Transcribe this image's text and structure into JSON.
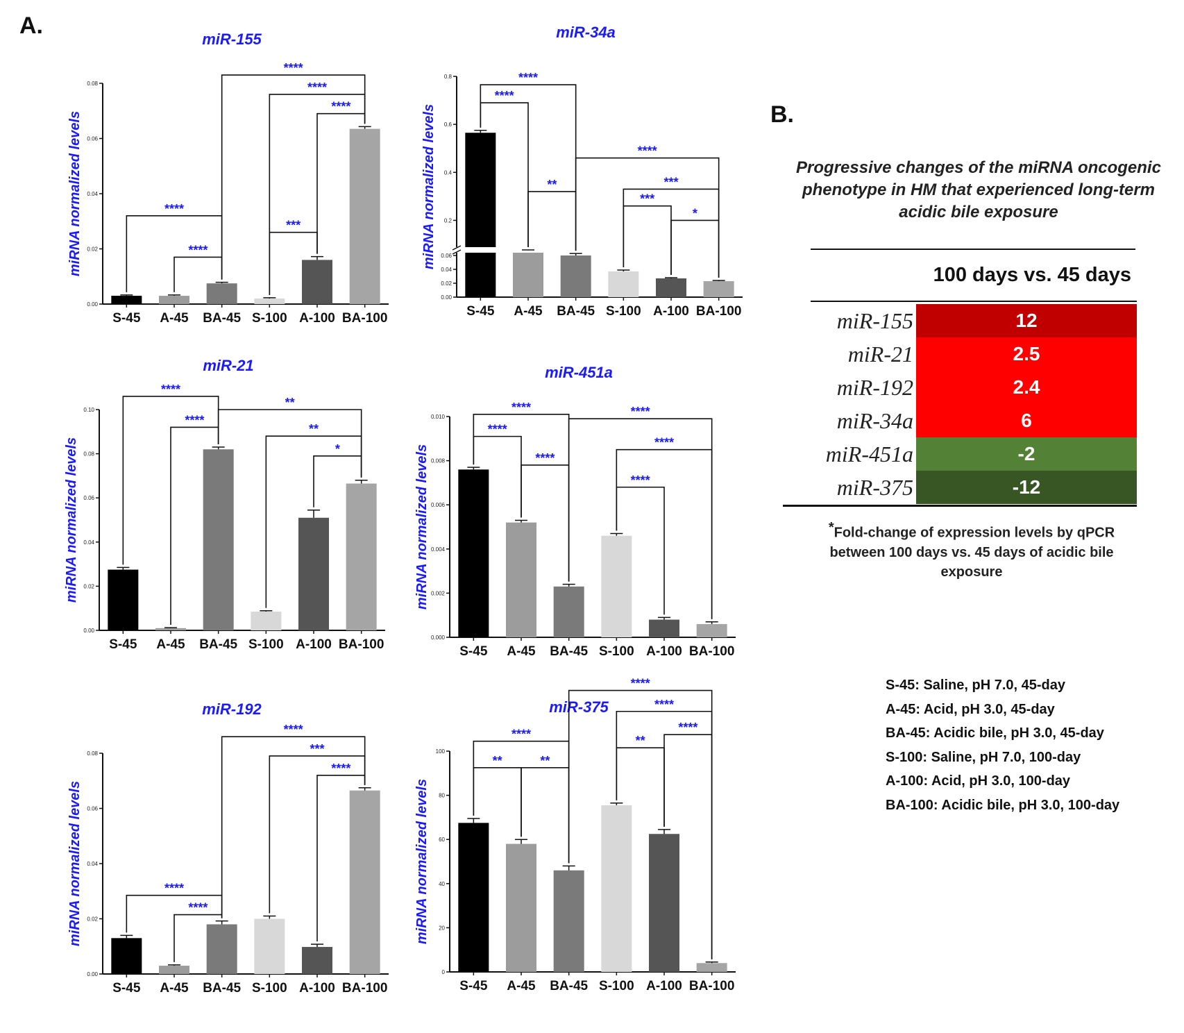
{
  "panels": {
    "a": "A.",
    "b": "B."
  },
  "chart_data": [
    {
      "type": "bar",
      "title": "miR-155",
      "ylabel": "miRNA normalized levels",
      "categories": [
        "S-45",
        "A-45",
        "BA-45",
        "S-100",
        "A-100",
        "BA-100"
      ],
      "values": [
        0.003,
        0.003,
        0.0075,
        0.002,
        0.016,
        0.0635
      ],
      "errors": [
        0.0003,
        0.0003,
        0.0004,
        0.0003,
        0.0012,
        0.0008
      ],
      "ylim": [
        0,
        0.08
      ],
      "yticks": [
        0.0,
        0.02,
        0.04,
        0.06,
        0.08
      ],
      "ytick_labels": [
        "0.00",
        "0.02",
        "0.04",
        "0.06",
        "0.08"
      ],
      "colors": [
        "#000000",
        "#9c9c9c",
        "#7a7a7a",
        "#d8d8d8",
        "#555555",
        "#a5a5a5"
      ],
      "significance": [
        {
          "from": 0,
          "to": 2,
          "label": "****",
          "y": 0.032
        },
        {
          "from": 1,
          "to": 2,
          "label": "****",
          "y": 0.017
        },
        {
          "from": 3,
          "to": 4,
          "label": "***",
          "y": 0.026
        },
        {
          "from": 2,
          "to": 5,
          "label": "****",
          "y": 0.083
        },
        {
          "from": 3,
          "to": 5,
          "label": "****",
          "y": 0.076
        },
        {
          "from": 4,
          "to": 5,
          "label": "****",
          "y": 0.069
        }
      ]
    },
    {
      "type": "bar",
      "title": "miR-34a",
      "ylabel": "miRNA normalized levels",
      "broken_axis": true,
      "categories": [
        "S-45",
        "A-45",
        "BA-45",
        "S-100",
        "A-100",
        "BA-100"
      ],
      "values": [
        0.565,
        0.075,
        0.06,
        0.037,
        0.027,
        0.023
      ],
      "errors": [
        0.01,
        0.002,
        0.002,
        0.002,
        0.001,
        0.001
      ],
      "ylim": [
        0,
        0.8
      ],
      "ytick_labels_low": [
        "0.00",
        "0.02",
        "0.04",
        "0.06"
      ],
      "ytick_labels_high": [
        "0.2",
        "0.4",
        "0.6",
        "0.8"
      ],
      "colors": [
        "#000000",
        "#9c9c9c",
        "#7a7a7a",
        "#d8d8d8",
        "#555555",
        "#a5a5a5"
      ],
      "significance": [
        {
          "from": 0,
          "to": 2,
          "label": "****",
          "y": 0.765
        },
        {
          "from": 0,
          "to": 1,
          "label": "****",
          "y": 0.69
        },
        {
          "from": 1,
          "to": 2,
          "label": "**",
          "y": 0.32
        },
        {
          "from": 2,
          "to": 5,
          "label": "****",
          "y": 0.46
        },
        {
          "from": 3,
          "to": 5,
          "label": "***",
          "y": 0.33
        },
        {
          "from": 3,
          "to": 4,
          "label": "***",
          "y": 0.26
        },
        {
          "from": 4,
          "to": 5,
          "label": "*",
          "y": 0.2
        }
      ]
    },
    {
      "type": "bar",
      "title": "miR-21",
      "ylabel": "miRNA normalized levels",
      "categories": [
        "S-45",
        "A-45",
        "BA-45",
        "S-100",
        "A-100",
        "BA-100"
      ],
      "values": [
        0.0275,
        0.001,
        0.082,
        0.0085,
        0.051,
        0.0665
      ],
      "errors": [
        0.001,
        0.0002,
        0.001,
        0.0004,
        0.0035,
        0.0015
      ],
      "ylim": [
        0,
        0.1
      ],
      "yticks": [
        0.0,
        0.02,
        0.04,
        0.06,
        0.08,
        0.1
      ],
      "ytick_labels": [
        "0.00",
        "0.02",
        "0.04",
        "0.06",
        "0.08",
        "0.10"
      ],
      "colors": [
        "#000000",
        "#9c9c9c",
        "#7a7a7a",
        "#d8d8d8",
        "#555555",
        "#a5a5a5"
      ],
      "significance": [
        {
          "from": 0,
          "to": 2,
          "label": "****",
          "y": 0.106
        },
        {
          "from": 1,
          "to": 2,
          "label": "****",
          "y": 0.092
        },
        {
          "from": 2,
          "to": 5,
          "label": "**",
          "y": 0.1
        },
        {
          "from": 3,
          "to": 5,
          "label": "**",
          "y": 0.088
        },
        {
          "from": 4,
          "to": 5,
          "label": "*",
          "y": 0.079
        }
      ]
    },
    {
      "type": "bar",
      "title": "miR-451a",
      "ylabel": "miRNA normalized levels",
      "categories": [
        "S-45",
        "A-45",
        "BA-45",
        "S-100",
        "A-100",
        "BA-100"
      ],
      "values": [
        0.0076,
        0.0052,
        0.0023,
        0.0046,
        0.0008,
        0.0006
      ],
      "errors": [
        0.0001,
        0.0001,
        0.0001,
        0.0001,
        0.0001,
        0.0001
      ],
      "ylim": [
        0,
        0.01
      ],
      "yticks": [
        0.0,
        0.002,
        0.004,
        0.006,
        0.008,
        0.01
      ],
      "ytick_labels": [
        "0.000",
        "0.002",
        "0.004",
        "0.006",
        "0.008",
        "0.010"
      ],
      "colors": [
        "#000000",
        "#9c9c9c",
        "#7a7a7a",
        "#d8d8d8",
        "#555555",
        "#a5a5a5"
      ],
      "significance": [
        {
          "from": 0,
          "to": 2,
          "label": "****",
          "y": 0.0101
        },
        {
          "from": 0,
          "to": 1,
          "label": "****",
          "y": 0.0091
        },
        {
          "from": 1,
          "to": 2,
          "label": "****",
          "y": 0.0078
        },
        {
          "from": 2,
          "to": 5,
          "label": "****",
          "y": 0.0099
        },
        {
          "from": 3,
          "to": 5,
          "label": "****",
          "y": 0.0085
        },
        {
          "from": 3,
          "to": 4,
          "label": "****",
          "y": 0.0068
        }
      ]
    },
    {
      "type": "bar",
      "title": "miR-192",
      "ylabel": "miRNA normalized levels",
      "categories": [
        "S-45",
        "A-45",
        "BA-45",
        "S-100",
        "A-100",
        "BA-100"
      ],
      "values": [
        0.013,
        0.003,
        0.018,
        0.02,
        0.0098,
        0.0665
      ],
      "errors": [
        0.001,
        0.0003,
        0.0012,
        0.001,
        0.001,
        0.001
      ],
      "ylim": [
        0,
        0.08
      ],
      "yticks": [
        0.0,
        0.02,
        0.04,
        0.06,
        0.08
      ],
      "ytick_labels": [
        "0.00",
        "0.02",
        "0.04",
        "0.06",
        "0.08"
      ],
      "colors": [
        "#000000",
        "#9c9c9c",
        "#7a7a7a",
        "#d8d8d8",
        "#555555",
        "#a5a5a5"
      ],
      "significance": [
        {
          "from": 0,
          "to": 2,
          "label": "****",
          "y": 0.0285
        },
        {
          "from": 1,
          "to": 2,
          "label": "****",
          "y": 0.0215
        },
        {
          "from": 2,
          "to": 5,
          "label": "****",
          "y": 0.086
        },
        {
          "from": 3,
          "to": 5,
          "label": "***",
          "y": 0.079
        },
        {
          "from": 4,
          "to": 5,
          "label": "****",
          "y": 0.072
        }
      ]
    },
    {
      "type": "bar",
      "title": "miR-375",
      "ylabel": "miRNA normalized levels",
      "categories": [
        "S-45",
        "A-45",
        "BA-45",
        "S-100",
        "A-100",
        "BA-100"
      ],
      "values": [
        67.5,
        58,
        46,
        75.5,
        62.5,
        4
      ],
      "errors": [
        2,
        2,
        2,
        1,
        2,
        0.5
      ],
      "ylim": [
        0,
        100
      ],
      "yticks": [
        0,
        20,
        40,
        60,
        80,
        100
      ],
      "ytick_labels": [
        "0",
        "20",
        "40",
        "60",
        "80",
        "100"
      ],
      "colors": [
        "#000000",
        "#9c9c9c",
        "#7a7a7a",
        "#d8d8d8",
        "#555555",
        "#a5a5a5"
      ],
      "significance": [
        {
          "from": 0,
          "to": 2,
          "label": "****",
          "y": 104.5
        },
        {
          "from": 0,
          "to": 1,
          "label": "**",
          "y": 92.5
        },
        {
          "from": 1,
          "to": 2,
          "label": "**",
          "y": 92.5
        },
        {
          "from": 2,
          "to": 5,
          "label": "****",
          "y": 127.5
        },
        {
          "from": 3,
          "to": 5,
          "label": "****",
          "y": 118
        },
        {
          "from": 3,
          "to": 4,
          "label": "**",
          "y": 101.5
        },
        {
          "from": 4,
          "to": 5,
          "label": "****",
          "y": 107.5
        }
      ]
    }
  ],
  "table": {
    "title": "Progressive changes of the miRNA oncogenic phenotype in HM that experienced long-term acidic bile exposure",
    "column_header": "100 days vs. 45 days",
    "rows": [
      {
        "name": "miR-155",
        "value": "12",
        "color": "#c00000"
      },
      {
        "name": "miR-21",
        "value": "2.5",
        "color": "#ff0000"
      },
      {
        "name": "miR-192",
        "value": "2.4",
        "color": "#ff0000"
      },
      {
        "name": "miR-34a",
        "value": "6",
        "color": "#ff0000"
      },
      {
        "name": "miR-451a",
        "value": "-2",
        "color": "#538135"
      },
      {
        "name": "miR-375",
        "value": "-12",
        "color": "#375623"
      }
    ],
    "footnote_mark": "*",
    "footnote": "Fold-change of expression levels by qPCR between 100 days vs. 45 days of acidic bile exposure"
  },
  "legend": [
    "S-45: Saline, pH 7.0, 45-day",
    "A-45: Acid, pH 3.0, 45-day",
    "BA-45: Acidic bile, pH 3.0, 45-day",
    "S-100: Saline, pH 7.0, 100-day",
    "A-100: Acid, pH 3.0, 100-day",
    "BA-100: Acidic bile, pH 3.0, 100-day"
  ]
}
